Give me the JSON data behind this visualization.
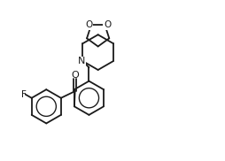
{
  "bg_color": "#ffffff",
  "line_color": "#1a1a1a",
  "line_width": 1.3,
  "font_size": 7.5,
  "fig_width": 2.55,
  "fig_height": 1.82,
  "dpi": 100,
  "xlim": [
    0,
    10
  ],
  "ylim": [
    0,
    7
  ]
}
